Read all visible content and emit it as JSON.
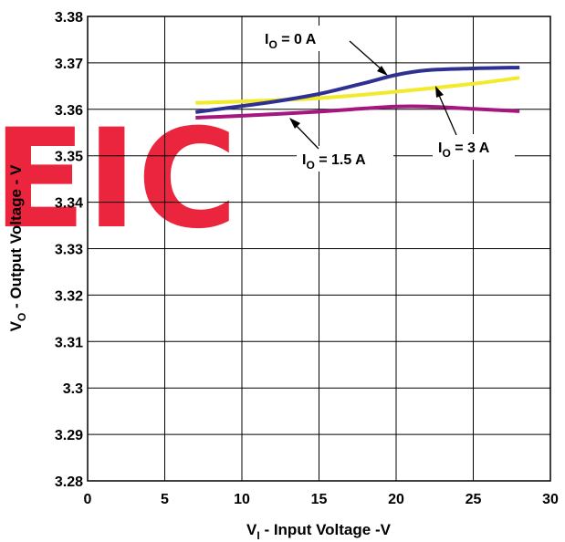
{
  "chart_data": {
    "type": "line",
    "xlabel": {
      "main": "V",
      "sub": "I",
      "rest": " - Input Voltage -V"
    },
    "ylabel": {
      "main": "V",
      "sub": "O",
      "rest": " - Output Voltage - V"
    },
    "xlim": [
      0,
      30
    ],
    "ylim": [
      3.28,
      3.38
    ],
    "x_ticks": [
      0,
      5,
      10,
      15,
      20,
      25,
      30
    ],
    "y_ticks": [
      3.28,
      3.29,
      3.3,
      3.31,
      3.32,
      3.33,
      3.34,
      3.35,
      3.36,
      3.37,
      3.38
    ],
    "x_tick_labels": [
      "0",
      "5",
      "10",
      "15",
      "20",
      "25",
      "30"
    ],
    "y_tick_labels": [
      "3.28",
      "3.29",
      "3.3",
      "3.31",
      "3.32",
      "3.33",
      "3.34",
      "3.35",
      "3.36",
      "3.37",
      "3.38"
    ],
    "grid": true,
    "series": [
      {
        "name": "I_O = 0 A",
        "color": "#2E3192",
        "x": [
          7,
          10,
          12,
          15,
          18,
          20,
          22,
          25,
          28
        ],
        "y": [
          3.3594,
          3.3607,
          3.3616,
          3.3633,
          3.3657,
          3.3674,
          3.3684,
          3.3688,
          3.369
        ]
      },
      {
        "name": "I_O = 1.5 A",
        "color": "#A4177E",
        "x": [
          7,
          10,
          15,
          18,
          20,
          22,
          25,
          28
        ],
        "y": [
          3.3582,
          3.3586,
          3.3595,
          3.3602,
          3.3606,
          3.3606,
          3.3601,
          3.3596
        ]
      },
      {
        "name": "I_O = 3 A",
        "color": "#F2EA2B",
        "x": [
          7,
          10,
          15,
          20,
          25,
          28
        ],
        "y": [
          3.3614,
          3.3617,
          3.3624,
          3.3638,
          3.3655,
          3.3668
        ]
      }
    ],
    "annotations": [
      {
        "main": "I",
        "sub": "O",
        "rest": " = 0 A",
        "series": 0
      },
      {
        "main": "I",
        "sub": "O",
        "rest": " = 1.5 A",
        "series": 1
      },
      {
        "main": "I",
        "sub": "O",
        "rest": " = 3 A",
        "series": 2
      }
    ]
  },
  "watermark": {
    "text": "EIC",
    "color": "#E8001C"
  }
}
